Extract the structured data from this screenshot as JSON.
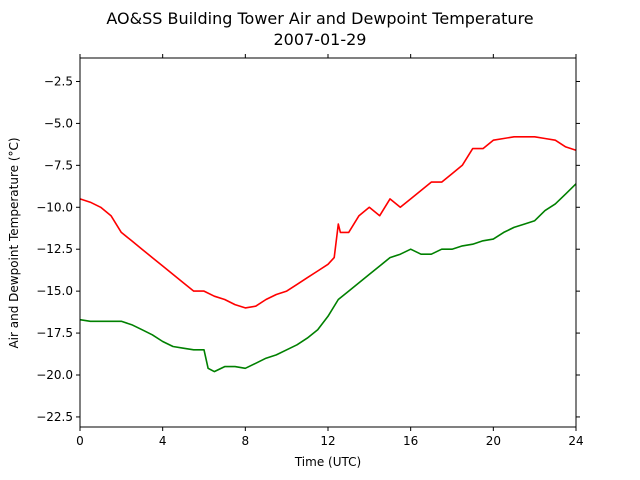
{
  "chart_data": {
    "type": "line",
    "title": "AO&SS Building Tower Air and Dewpoint Temperature",
    "subtitle": "2007-01-29",
    "xlabel": "Time (UTC)",
    "ylabel": "Air and Dewpoint Temperature (°C)",
    "xlim": [
      0,
      24
    ],
    "ylim": [
      -23.1,
      -1.1
    ],
    "x_ticks": [
      0,
      4,
      8,
      12,
      16,
      20,
      24
    ],
    "x_tick_labels": [
      "0",
      "4",
      "8",
      "12",
      "16",
      "20",
      "24"
    ],
    "y_ticks": [
      -22.5,
      -20.0,
      -17.5,
      -15.0,
      -12.5,
      -10.0,
      -7.5,
      -5.0,
      -2.5
    ],
    "y_tick_labels": [
      "−22.5",
      "−20.0",
      "−17.5",
      "−15.0",
      "−12.5",
      "−10.0",
      "−7.5",
      "−5.0",
      "−2.5"
    ],
    "grid": false,
    "series": [
      {
        "color": "#ff0000",
        "x": [
          0,
          0.5,
          1,
          1.5,
          2,
          2.5,
          3,
          3.5,
          4,
          4.5,
          5,
          5.5,
          6,
          6.5,
          7,
          7.5,
          8,
          8.5,
          9,
          9.5,
          10,
          10.5,
          11,
          11.5,
          12,
          12.3,
          12.5,
          12.6,
          13,
          13.5,
          14,
          14.5,
          15,
          15.5,
          16,
          16.5,
          17,
          17.5,
          18,
          18.5,
          19,
          19.5,
          20,
          20.5,
          21,
          21.5,
          22,
          22.5,
          23,
          23.5,
          24
        ],
        "y": [
          -9.5,
          -9.7,
          -10.0,
          -10.5,
          -11.5,
          -12.0,
          -12.5,
          -13.0,
          -13.5,
          -14.0,
          -14.5,
          -15.0,
          -15.0,
          -15.3,
          -15.5,
          -15.8,
          -16.0,
          -15.9,
          -15.5,
          -15.2,
          -15.0,
          -14.6,
          -14.2,
          -13.8,
          -13.4,
          -13.0,
          -11.0,
          -11.5,
          -11.5,
          -10.5,
          -10.0,
          -10.5,
          -9.5,
          -10.0,
          -9.5,
          -9.0,
          -8.5,
          -8.5,
          -8.0,
          -7.5,
          -6.5,
          -6.5,
          -6.0,
          -5.9,
          -5.8,
          -5.8,
          -5.8,
          -5.9,
          -6.0,
          -6.4,
          -6.6
        ]
      },
      {
        "color": "#008000",
        "x": [
          0,
          0.5,
          1,
          1.5,
          2,
          2.5,
          3,
          3.5,
          4,
          4.5,
          5,
          5.5,
          6,
          6.2,
          6.5,
          7,
          7.5,
          8,
          8.5,
          9,
          9.5,
          10,
          10.5,
          11,
          11.5,
          12,
          12.5,
          13,
          13.5,
          14,
          14.5,
          15,
          15.5,
          16,
          16.5,
          17,
          17.5,
          18,
          18.5,
          19,
          19.5,
          20,
          20.5,
          21,
          21.5,
          22,
          22.5,
          23,
          23.5,
          24
        ],
        "y": [
          -16.7,
          -16.8,
          -16.8,
          -16.8,
          -16.8,
          -17.0,
          -17.3,
          -17.6,
          -18.0,
          -18.3,
          -18.4,
          -18.5,
          -18.5,
          -19.6,
          -19.8,
          -19.5,
          -19.5,
          -19.6,
          -19.3,
          -19.0,
          -18.8,
          -18.5,
          -18.2,
          -17.8,
          -17.3,
          -16.5,
          -15.5,
          -15.0,
          -14.5,
          -14.0,
          -13.5,
          -13.0,
          -12.8,
          -12.5,
          -12.8,
          -12.8,
          -12.5,
          -12.5,
          -12.3,
          -12.2,
          -12.0,
          -11.9,
          -11.5,
          -11.2,
          -11.0,
          -10.8,
          -10.2,
          -9.8,
          -9.2,
          -8.6
        ]
      }
    ]
  }
}
